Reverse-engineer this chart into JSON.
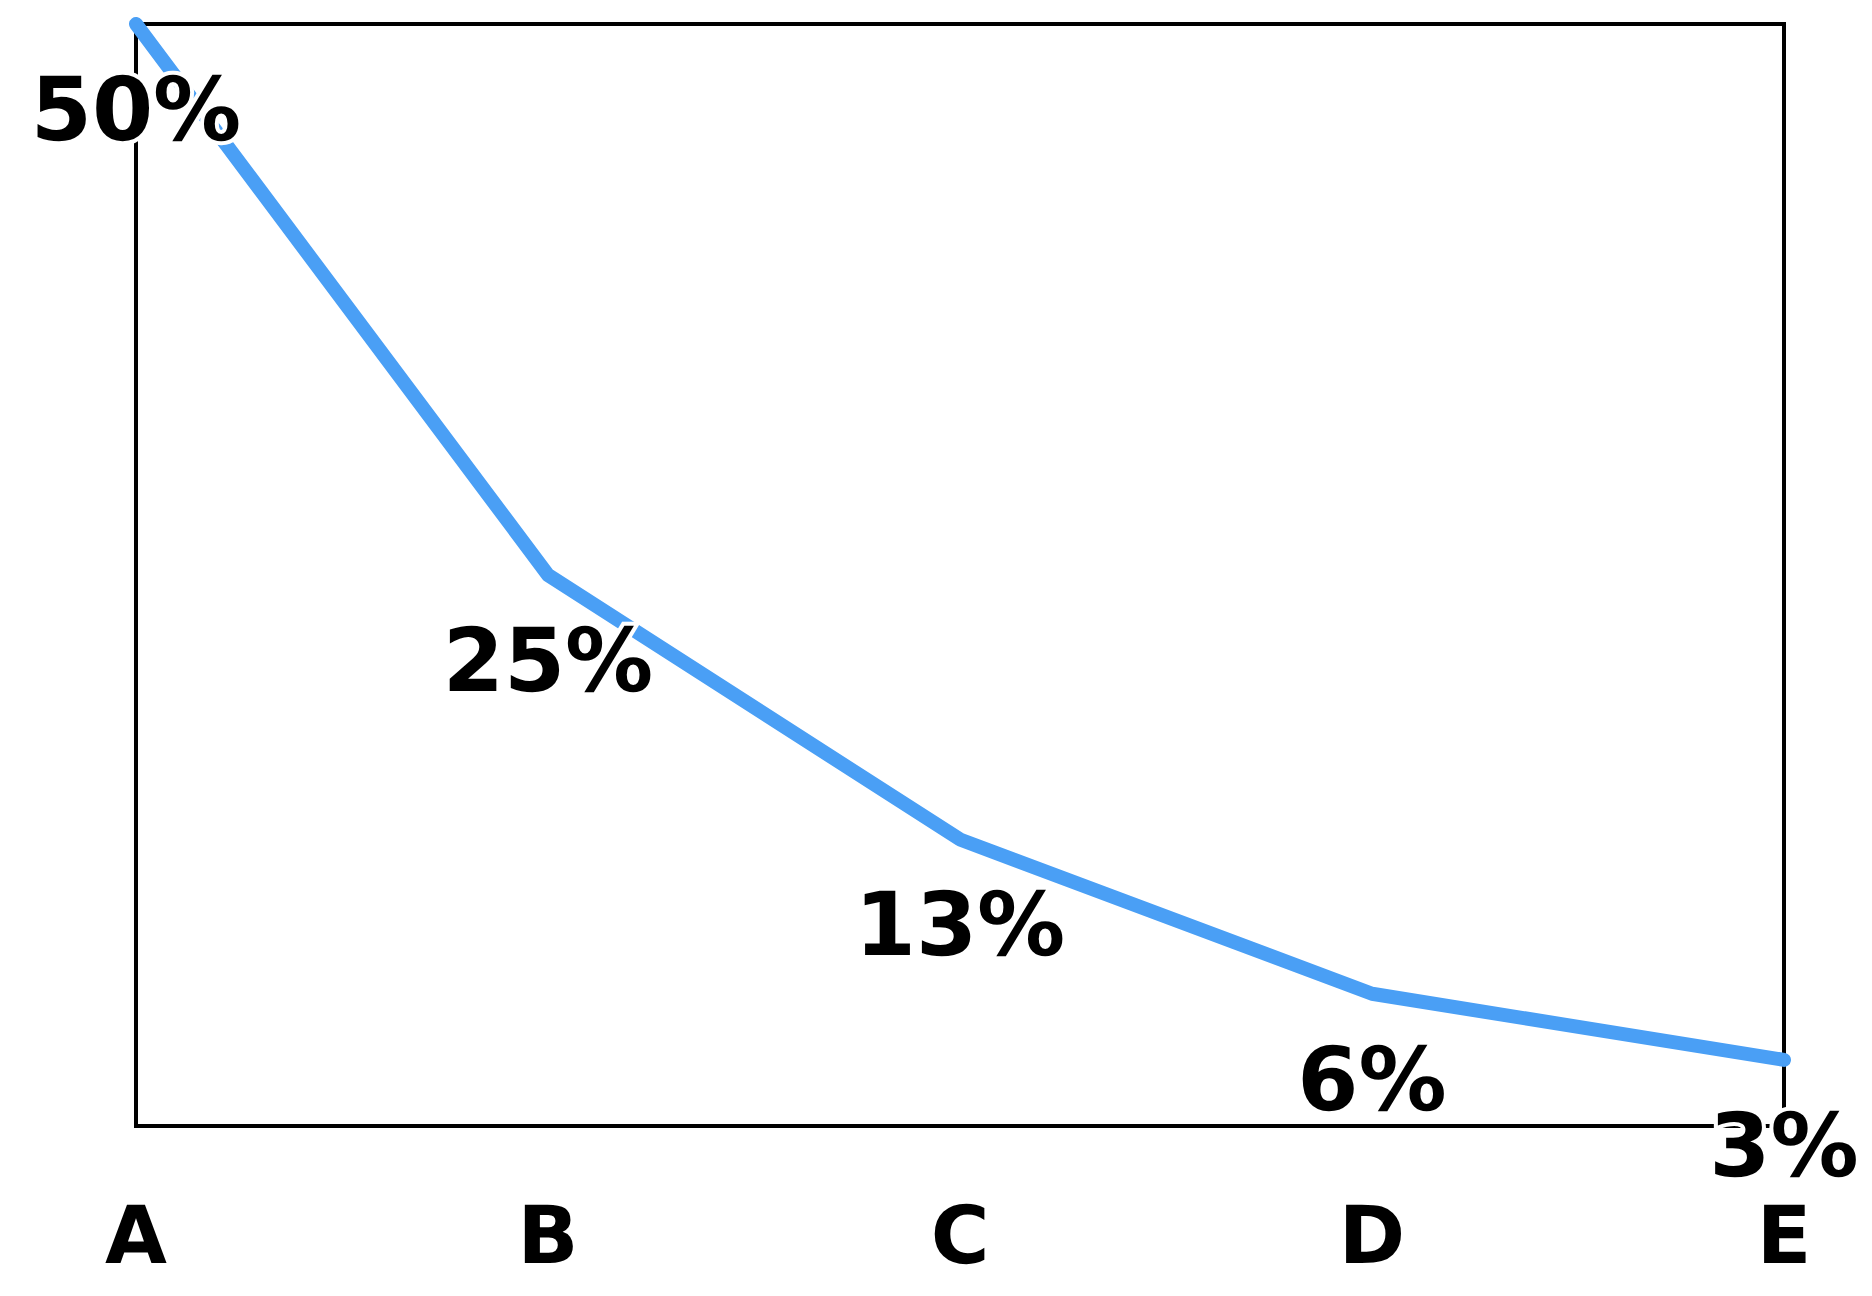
{
  "chart_data": {
    "type": "line",
    "categories": [
      "A",
      "B",
      "C",
      "D",
      "E"
    ],
    "series": [
      {
        "color": "#4a9ff5",
        "values": [
          50,
          25,
          13,
          6,
          3
        ],
        "value_labels": [
          "50%",
          "25%",
          "13%",
          "6%",
          "3%"
        ]
      }
    ],
    "ylim": [
      0,
      50
    ],
    "tick_labels": "x",
    "marker": "none",
    "line_style": "solid"
  }
}
